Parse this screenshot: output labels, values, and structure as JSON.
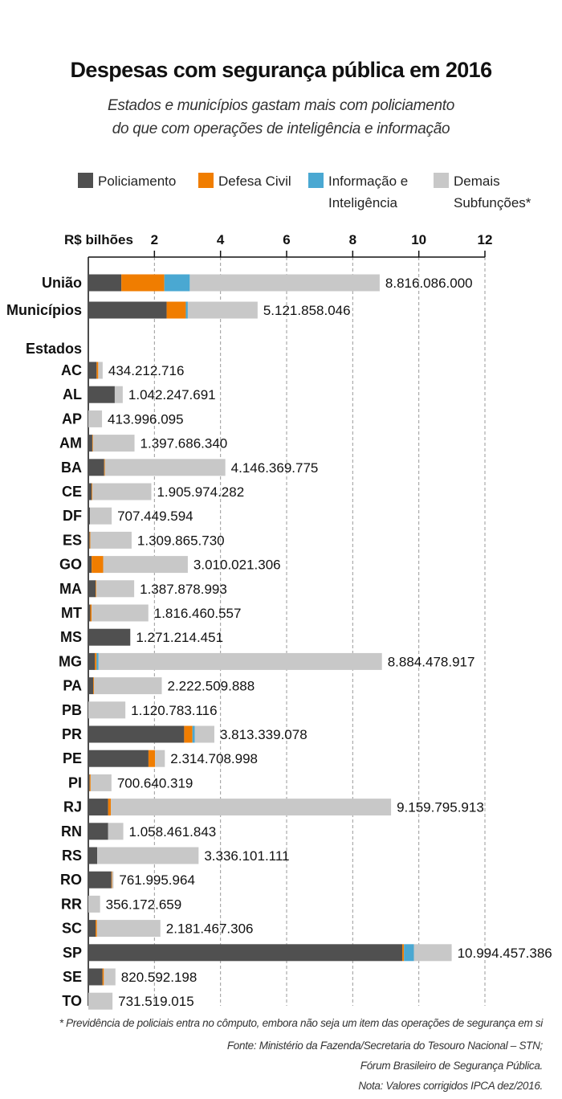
{
  "header": {
    "title": "Despesas com segurança pública em 2016",
    "subtitle_line1": "Estados e municípios gastam mais com policiamento",
    "subtitle_line2": "do que com operações de inteligência e informação"
  },
  "footer": {
    "footnote": "* Previdência de policiais entra no cômputo, embora não seja um item das operações de segurança em si",
    "source_line1": "Fonte: Ministério da Fazenda/Secretaria do Tesouro Nacional – STN;",
    "source_line2": "Fórum Brasileiro de Segurança Pública.",
    "note": "Nota: Valores corrigidos IPCA dez/2016."
  },
  "chart_data": {
    "type": "bar",
    "orientation": "horizontal",
    "stacked": true,
    "axis": {
      "label": "R$ bilhões",
      "ticks": [
        "2",
        "4",
        "6",
        "8",
        "10",
        "12"
      ],
      "tick_values": [
        2,
        4,
        6,
        8,
        10,
        12
      ],
      "min": 0,
      "max": 12,
      "position": "top",
      "gridlines": "dashed"
    },
    "colors": {
      "Policiamento": "#505050",
      "Defesa Civil": "#f07d00",
      "Informação e Inteligência": "#4aa8d2",
      "Demais Subfunções*": "#c8c8c8"
    },
    "legend": {
      "placement": "top",
      "items": [
        {
          "series": "Policiamento",
          "lines": [
            "Policiamento"
          ]
        },
        {
          "series": "Defesa Civil",
          "lines": [
            "Defesa Civil"
          ]
        },
        {
          "series": "Informação e Inteligência",
          "lines": [
            "Informação e",
            "Inteligência"
          ]
        },
        {
          "series": "Demais Subfunções*",
          "lines": [
            "Demais",
            "Subfunções*"
          ]
        }
      ]
    },
    "group_label": "Estados",
    "categories": [
      "União",
      "Municípios",
      "AC",
      "AL",
      "AP",
      "AM",
      "BA",
      "CE",
      "DF",
      "ES",
      "GO",
      "MA",
      "MT",
      "MS",
      "MG",
      "PA",
      "PB",
      "PR",
      "PE",
      "PI",
      "RJ",
      "RN",
      "RS",
      "RO",
      "RR",
      "SC",
      "SP",
      "SE",
      "TO"
    ],
    "totals_labels": [
      "8.816.086.000",
      "5.121.858.046",
      "434.212.716",
      "1.042.247.691",
      "413.996.095",
      "1.397.686.340",
      "4.146.369.775",
      "1.905.974.282",
      "707.449.594",
      "1.309.865.730",
      "3.010.021.306",
      "1.387.878.993",
      "1.816.460.557",
      "1.271.214.451",
      "8.884.478.917",
      "2.222.509.888",
      "1.120.783.116",
      "3.813.339.078",
      "2.314.708.998",
      "700.640.319",
      "9.159.795.913",
      "1.058.461.843",
      "3.336.101.111",
      "761.995.964",
      "356.172.659",
      "2.181.467.306",
      "10.994.457.386",
      "820.592.198",
      "731.519.015"
    ],
    "series": [
      {
        "name": "Policiamento",
        "values": [
          1.0,
          2.37,
          0.25,
          0.8,
          0.0,
          0.12,
          0.48,
          0.1,
          0.05,
          0.04,
          0.1,
          0.22,
          0.06,
          1.27,
          0.2,
          0.15,
          0.0,
          2.9,
          1.82,
          0.04,
          0.6,
          0.6,
          0.27,
          0.7,
          0.0,
          0.22,
          9.5,
          0.43,
          0.0
        ]
      },
      {
        "name": "Defesa Civil",
        "values": [
          1.3,
          0.58,
          0.05,
          0.0,
          0.0,
          0.02,
          0.02,
          0.02,
          0.0,
          0.02,
          0.35,
          0.02,
          0.04,
          0.0,
          0.05,
          0.02,
          0.0,
          0.25,
          0.2,
          0.03,
          0.08,
          0.0,
          0.0,
          0.02,
          0.0,
          0.04,
          0.05,
          0.04,
          0.0
        ]
      },
      {
        "name": "Informação e Inteligência",
        "values": [
          0.77,
          0.06,
          0.0,
          0.0,
          0.0,
          0.0,
          0.0,
          0.0,
          0.0,
          0.0,
          0.0,
          0.0,
          0.0,
          0.0,
          0.06,
          0.0,
          0.0,
          0.07,
          0.0,
          0.0,
          0.0,
          0.0,
          0.0,
          0.0,
          0.0,
          0.0,
          0.3,
          0.0,
          0.0
        ]
      },
      {
        "name": "Demais Subfunções*",
        "values": [
          5.746,
          2.112,
          0.134,
          0.242,
          0.414,
          1.258,
          3.646,
          1.786,
          0.657,
          1.25,
          2.56,
          1.148,
          1.716,
          0.001,
          8.574,
          2.053,
          1.121,
          0.593,
          0.295,
          0.631,
          8.48,
          0.458,
          3.066,
          0.042,
          0.356,
          1.921,
          1.144,
          0.351,
          0.732
        ]
      }
    ]
  }
}
